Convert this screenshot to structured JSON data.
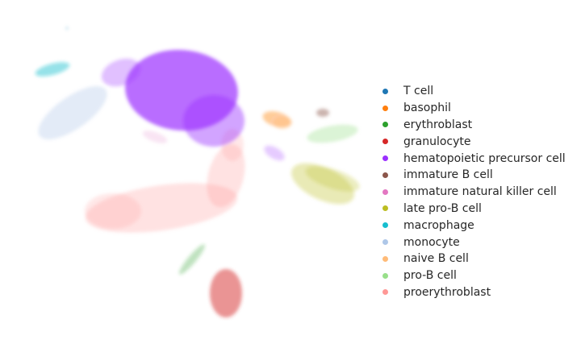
{
  "chart_data": {
    "type": "scatter",
    "title": "",
    "xlabel": "",
    "ylabel": "",
    "grid": false,
    "axes_visible": false,
    "legend_position": "right",
    "series": [
      {
        "name": "T cell",
        "color": "#1f77b4"
      },
      {
        "name": "basophil",
        "color": "#ff7f0e"
      },
      {
        "name": "erythroblast",
        "color": "#2ca02c"
      },
      {
        "name": "granulocyte",
        "color": "#d62728"
      },
      {
        "name": "hematopoietic precursor cell",
        "color": "#9b30ff"
      },
      {
        "name": "immature B cell",
        "color": "#8c564b"
      },
      {
        "name": "immature natural killer cell",
        "color": "#e377c2"
      },
      {
        "name": "late pro-B cell",
        "color": "#bcbd22"
      },
      {
        "name": "macrophage",
        "color": "#17becf"
      },
      {
        "name": "monocyte",
        "color": "#aec7e8"
      },
      {
        "name": "naive B cell",
        "color": "#ffbb78"
      },
      {
        "name": "pro-B cell",
        "color": "#98df8a"
      },
      {
        "name": "proerythroblast",
        "color": "#ff9896"
      }
    ]
  }
}
